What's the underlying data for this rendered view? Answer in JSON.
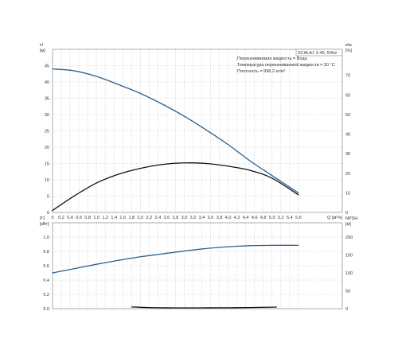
{
  "chart_data": [
    {
      "type": "line",
      "panel": "H / eta vs Q",
      "left_axis": {
        "label": "H",
        "unit": "[м]",
        "ylim": [
          0,
          50
        ],
        "ticks": [
          0,
          5,
          10,
          15,
          20,
          25,
          30,
          35,
          40,
          45
        ]
      },
      "right_axis": {
        "label": "eta",
        "unit": "[%]",
        "ylim": [
          0,
          83.3
        ],
        "ticks": [
          0,
          10,
          20,
          30,
          40,
          50,
          60,
          70
        ]
      },
      "x_axis": {
        "label": "Q",
        "unit": "[м³/ч]",
        "xlim": [
          0,
          6.6
        ],
        "ticks": [
          "0",
          "0,2",
          "0,4",
          "0,6",
          "0,8",
          "1,0",
          "1,2",
          "1,4",
          "1,6",
          "1,8",
          "2,0",
          "2,2",
          "2,4",
          "2,6",
          "2,8",
          "3,0",
          "3,2",
          "3,4",
          "3,6",
          "3,8",
          "4,0",
          "4,2",
          "4,4",
          "4,6",
          "4,8",
          "5,0",
          "5,2",
          "5,4",
          "5,6"
        ]
      },
      "grid": true,
      "series": [
        {
          "axis": "left",
          "color": "#2b5f8f",
          "x": [
            0,
            0.5,
            1,
            1.5,
            2,
            2.5,
            3,
            3.5,
            4,
            4.5,
            5,
            5.6
          ],
          "y": [
            44,
            43.4,
            41.7,
            39.2,
            36.5,
            33.2,
            29.5,
            25.3,
            20.8,
            15.8,
            11.3,
            6
          ]
        },
        {
          "axis": "right",
          "color": "#111111",
          "x": [
            0,
            0.5,
            1,
            1.5,
            2,
            2.5,
            3,
            3.5,
            4,
            4.5,
            5,
            5.6
          ],
          "y": [
            1,
            8.5,
            15,
            19.5,
            22.5,
            24.5,
            25.3,
            25,
            23.6,
            21.5,
            17.5,
            9
          ]
        }
      ],
      "legend_box": {
        "title": "SCALA1 3-45, 50Hz",
        "lines": [
          "Перекачиваемая жидкость = Вода",
          "Температура перекачиваемой жидкости = 20 °C",
          "Плотность = 998.2 кг/м³"
        ]
      }
    },
    {
      "type": "line",
      "panel": "P1 / NPSH vs Q",
      "left_axis": {
        "label": "P1",
        "unit": "[кВт]",
        "ylim": [
          0,
          1.2
        ],
        "ticks": [
          "0.0",
          "0.2",
          "0.4",
          "0.6",
          "0.8",
          "1.0"
        ]
      },
      "right_axis": {
        "label": "NPSH",
        "unit": "[м]",
        "ylim": [
          0,
          240
        ],
        "ticks": [
          0,
          50,
          100,
          150,
          200
        ]
      },
      "grid": true,
      "series": [
        {
          "axis": "left",
          "color": "#2b5f8f",
          "x": [
            0,
            0.5,
            1,
            1.5,
            2,
            2.5,
            3,
            3.5,
            4,
            4.5,
            5,
            5.6
          ],
          "y": [
            0.5,
            0.56,
            0.62,
            0.675,
            0.725,
            0.765,
            0.805,
            0.84,
            0.865,
            0.88,
            0.885,
            0.885
          ]
        },
        {
          "axis": "right",
          "color": "#111111",
          "x": [
            1.8,
            2.2,
            2.6,
            3,
            3.5,
            4,
            4.5,
            5.1
          ],
          "y": [
            5,
            3,
            2.3,
            2.2,
            2.3,
            2.5,
            3,
            4.5
          ]
        }
      ]
    }
  ]
}
